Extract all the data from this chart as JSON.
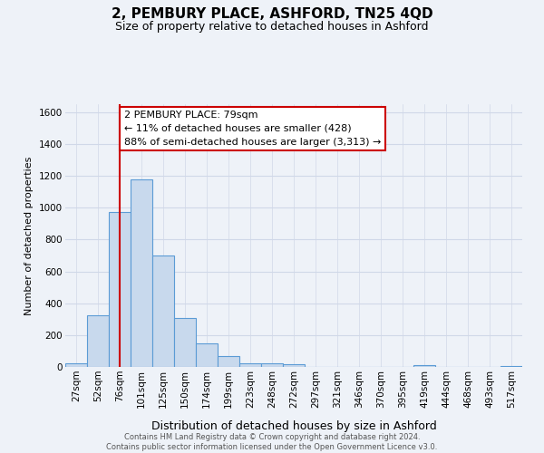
{
  "title": "2, PEMBURY PLACE, ASHFORD, TN25 4QD",
  "subtitle": "Size of property relative to detached houses in Ashford",
  "xlabel": "Distribution of detached houses by size in Ashford",
  "ylabel": "Number of detached properties",
  "footer_line1": "Contains HM Land Registry data © Crown copyright and database right 2024.",
  "footer_line2": "Contains public sector information licensed under the Open Government Licence v3.0.",
  "bar_labels": [
    "27sqm",
    "52sqm",
    "76sqm",
    "101sqm",
    "125sqm",
    "150sqm",
    "174sqm",
    "199sqm",
    "223sqm",
    "248sqm",
    "272sqm",
    "297sqm",
    "321sqm",
    "346sqm",
    "370sqm",
    "395sqm",
    "419sqm",
    "444sqm",
    "468sqm",
    "493sqm",
    "517sqm"
  ],
  "bar_values": [
    25,
    325,
    975,
    1180,
    700,
    305,
    150,
    70,
    25,
    20,
    15,
    0,
    0,
    0,
    0,
    0,
    12,
    0,
    0,
    0,
    8
  ],
  "bar_color": "#c8d9ed",
  "bar_edge_color": "#5b9bd5",
  "annotation_title": "2 PEMBURY PLACE: 79sqm",
  "annotation_line1": "← 11% of detached houses are smaller (428)",
  "annotation_line2": "88% of semi-detached houses are larger (3,313) →",
  "annotation_box_color": "#ffffff",
  "annotation_box_edge_color": "#cc0000",
  "vline_color": "#cc0000",
  "ylim": [
    0,
    1650
  ],
  "yticks": [
    0,
    200,
    400,
    600,
    800,
    1000,
    1200,
    1400,
    1600
  ],
  "grid_color": "#d0d8e8",
  "background_color": "#eef2f8",
  "title_fontsize": 11,
  "subtitle_fontsize": 9,
  "ylabel_fontsize": 8,
  "xlabel_fontsize": 9,
  "tick_fontsize": 7.5,
  "annotation_fontsize": 8,
  "footer_fontsize": 6
}
